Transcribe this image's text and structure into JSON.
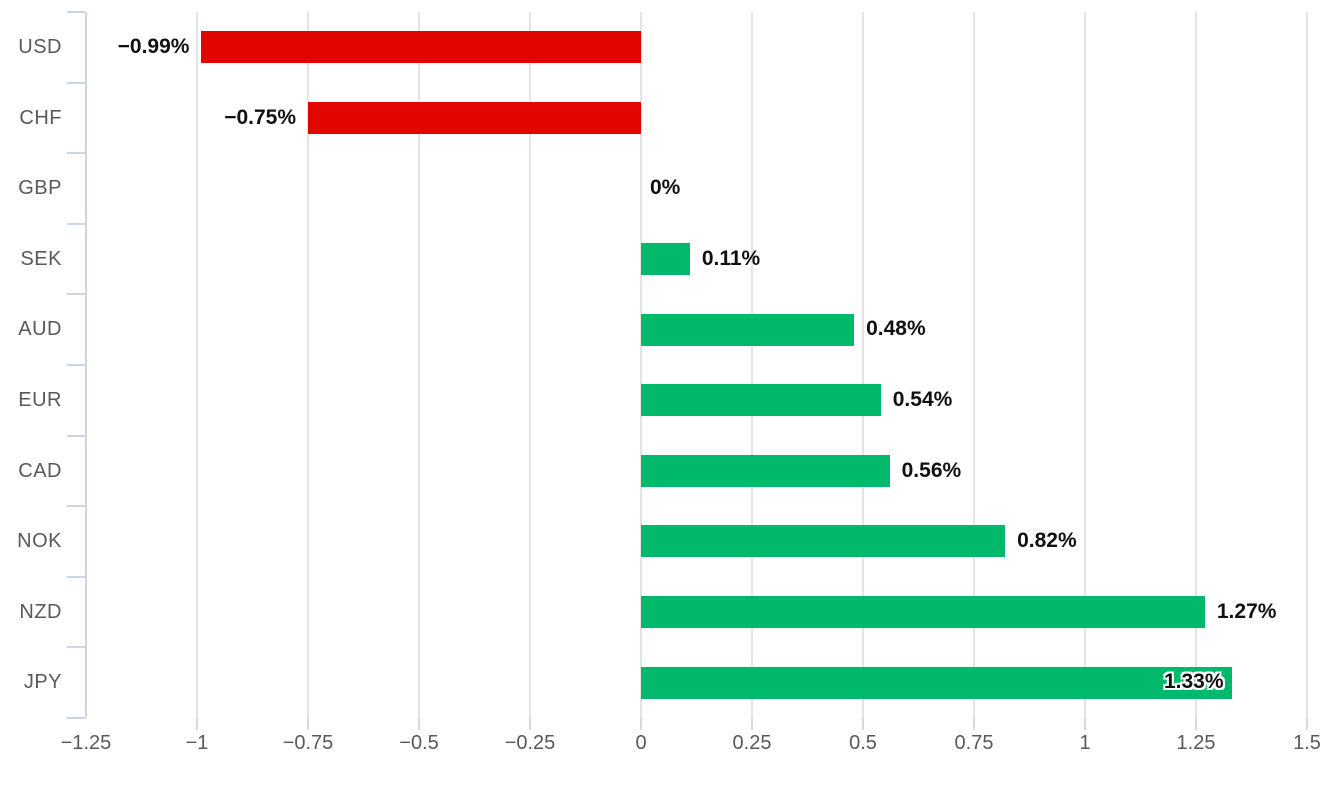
{
  "chart_data": {
    "type": "bar",
    "orientation": "horizontal",
    "title": "",
    "xlabel": "",
    "ylabel": "",
    "categories": [
      "USD",
      "CHF",
      "GBP",
      "SEK",
      "AUD",
      "EUR",
      "CAD",
      "NOK",
      "NZD",
      "JPY"
    ],
    "values": [
      -0.99,
      -0.75,
      0,
      0.11,
      0.48,
      0.54,
      0.56,
      0.82,
      1.27,
      1.33
    ],
    "value_labels": [
      "−0.99%",
      "−0.75%",
      "0%",
      "0.11%",
      "0.48%",
      "0.54%",
      "0.56%",
      "0.82%",
      "1.27%",
      "1.33%"
    ],
    "xlim": [
      -1.25,
      1.5
    ],
    "x_ticks": [
      -1.25,
      -1,
      -0.75,
      -0.5,
      -0.25,
      0,
      0.25,
      0.5,
      0.75,
      1,
      1.25,
      1.5
    ],
    "x_tick_labels": [
      "−1.25",
      "−1",
      "−0.75",
      "−0.5",
      "−0.25",
      "0",
      "0.25",
      "0.5",
      "0.75",
      "1",
      "1.25",
      "1.5"
    ],
    "grid": true,
    "legend": false,
    "colors": {
      "negative": "#e10600",
      "positive": "#00b96b",
      "gridline": "#e4e4e4",
      "axis": "#ccd5e3",
      "tick": "#d9d9d9",
      "category_text": "#595959",
      "value_text": "#111111"
    }
  }
}
